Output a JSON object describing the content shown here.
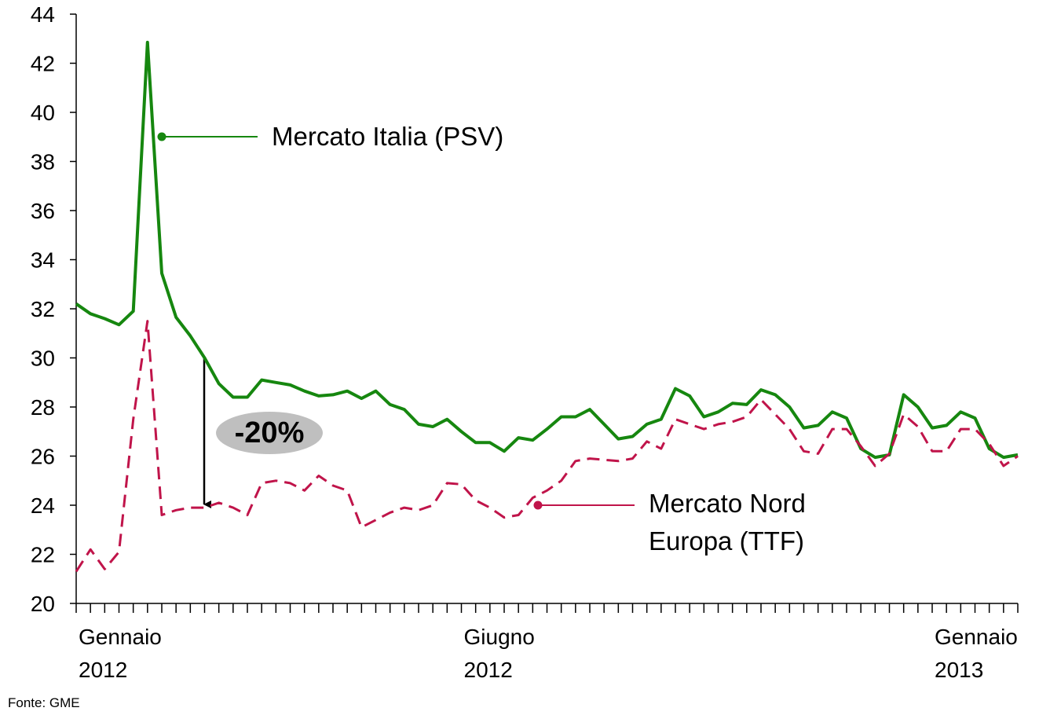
{
  "chart_data": {
    "type": "line",
    "categories": [
      "Gennaio 2012",
      null,
      null,
      null,
      null,
      null,
      null,
      null,
      null,
      null,
      null,
      null,
      null,
      null,
      null,
      null,
      null,
      null,
      null,
      null,
      null,
      null,
      null,
      null,
      null,
      null,
      null,
      "Giugno 2012",
      null,
      null,
      null,
      null,
      null,
      null,
      null,
      null,
      null,
      null,
      null,
      null,
      null,
      null,
      null,
      null,
      null,
      null,
      null,
      null,
      null,
      null,
      null,
      null,
      null,
      null,
      null,
      null,
      null,
      null,
      null,
      null,
      "Gennaio 2013",
      null,
      null,
      null,
      null,
      null,
      null
    ],
    "series": [
      {
        "name": "Mercato Italia (PSV)",
        "color": "#16870f",
        "dashed": false,
        "values": [
          32.2,
          31.8,
          31.6,
          31.35,
          31.9,
          42.85,
          33.45,
          31.65,
          30.9,
          30.0,
          28.95,
          28.4,
          28.4,
          29.1,
          29.0,
          28.9,
          28.65,
          28.45,
          28.5,
          28.65,
          28.35,
          28.65,
          28.1,
          27.9,
          27.3,
          27.2,
          27.5,
          27.0,
          26.55,
          26.55,
          26.2,
          26.75,
          26.65,
          27.1,
          27.6,
          27.6,
          27.9,
          27.3,
          26.7,
          26.8,
          27.3,
          27.5,
          28.75,
          28.45,
          27.6,
          27.8,
          28.15,
          28.1,
          28.7,
          28.5,
          28.0,
          27.15,
          27.25,
          27.8,
          27.55,
          26.3,
          25.95,
          26.05,
          28.5,
          28.0,
          27.15,
          27.25,
          27.8,
          27.55,
          26.3,
          25.95,
          26.05
        ]
      },
      {
        "name": "Mercato Nord Europa (TTF)",
        "color": "#c0144a",
        "dashed": true,
        "values": [
          21.3,
          22.2,
          21.4,
          22.1,
          27.5,
          31.5,
          23.6,
          23.8,
          23.9,
          23.9,
          24.1,
          23.9,
          23.6,
          24.9,
          25.0,
          24.9,
          24.6,
          25.2,
          24.8,
          24.6,
          23.1,
          23.4,
          23.7,
          23.9,
          23.8,
          24.0,
          24.9,
          24.85,
          24.2,
          23.9,
          23.5,
          23.6,
          24.3,
          24.6,
          25.0,
          25.8,
          25.9,
          25.85,
          25.8,
          25.9,
          26.6,
          26.3,
          27.5,
          27.3,
          27.1,
          27.3,
          27.4,
          27.6,
          28.3,
          27.7,
          27.1,
          26.2,
          26.1,
          27.1,
          27.1,
          26.4,
          25.6,
          26.1,
          27.7,
          27.2,
          26.2,
          26.2,
          27.1,
          27.1,
          26.5,
          25.6,
          26.0
        ]
      }
    ],
    "ylim": [
      20,
      44
    ],
    "yticks": [
      20,
      22,
      24,
      26,
      28,
      30,
      32,
      34,
      36,
      38,
      40,
      42,
      44
    ],
    "series_labels": [
      [
        "Mercato Italia (PSV)"
      ],
      [
        "Mercato Nord",
        "Europa (TTF)"
      ]
    ],
    "annotation": "-20%",
    "source": "Fonte: GME"
  }
}
